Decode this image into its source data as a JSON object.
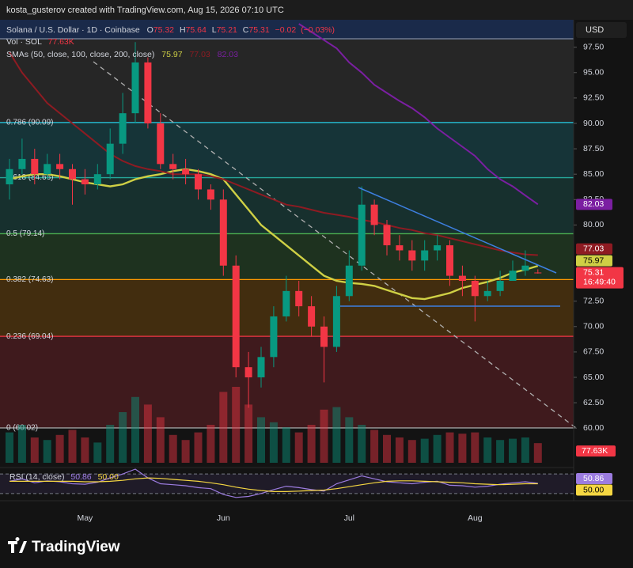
{
  "attribution": "kosta_gusterov created with TradingView.com, Aug 15, 2026 07:10 UTC",
  "currency": "USD",
  "logo": "TradingView",
  "chart_data": {
    "type": "candlestick",
    "symbol": "Solana / U.S. Dollar · 1D · Coinbase",
    "ohlc_labels": [
      "O",
      "H",
      "L",
      "C"
    ],
    "change": {
      "value": -0.02,
      "label": "−0.02"
    },
    "change_pct": {
      "value": -0.03,
      "label": "(−0.03%)"
    },
    "countdown": "16:49:40",
    "categories": [
      null,
      null,
      null,
      null,
      null,
      null,
      "May",
      null,
      null,
      null,
      null,
      null,
      null,
      null,
      null,
      null,
      null,
      "Jun",
      null,
      null,
      null,
      null,
      null,
      null,
      null,
      null,
      null,
      "Jul",
      null,
      null,
      null,
      null,
      null,
      null,
      null,
      null,
      null,
      "Aug",
      null,
      null,
      null,
      null,
      null
    ],
    "open": [
      84,
      85.5,
      86.5,
      85,
      86,
      85.5,
      84.5,
      84,
      85,
      88,
      91,
      96,
      90,
      86,
      85.5,
      85,
      83.5,
      82.5,
      76,
      66,
      65,
      67,
      71,
      73.5,
      72,
      70,
      68,
      73,
      76,
      82,
      80,
      78,
      77.5,
      76.5,
      77.5,
      78,
      75,
      74.5,
      73,
      73.5,
      74.5,
      75.5,
      75.32
    ],
    "high": [
      86.5,
      88.5,
      87.5,
      87,
      87,
      86,
      85.5,
      86,
      89.5,
      93,
      98,
      96.5,
      91,
      87,
      86.5,
      85.5,
      84,
      83.5,
      77,
      67.5,
      68,
      72,
      75,
      74.5,
      73,
      71,
      74,
      77.5,
      83.8,
      82.5,
      80.5,
      79,
      78.5,
      78.5,
      79,
      78.5,
      76,
      75,
      74.5,
      75.5,
      76.5,
      77.5,
      75.64
    ],
    "low": [
      82.5,
      85,
      84,
      84.5,
      84.5,
      82,
      83,
      83.5,
      84.5,
      87,
      90,
      89.5,
      85.5,
      84.5,
      84,
      82.5,
      81.5,
      75,
      65,
      62,
      64,
      66,
      70.5,
      71,
      69,
      64.5,
      67.5,
      72.5,
      75.5,
      79,
      77,
      76.5,
      75.5,
      75.5,
      76.5,
      74,
      73,
      70.5,
      72.5,
      73,
      74.5,
      75,
      75.21
    ],
    "close": [
      85.5,
      86.5,
      85,
      86,
      85.5,
      84.5,
      84,
      85,
      88,
      91,
      96,
      90,
      86,
      85.5,
      85,
      83.5,
      82.5,
      76,
      66,
      65,
      67,
      71,
      73.5,
      72,
      70,
      68,
      73,
      76,
      82,
      80,
      78,
      77.5,
      76.5,
      77.5,
      78,
      75,
      74.5,
      73,
      73.5,
      74.5,
      75.5,
      76,
      75.31
    ],
    "up_color": "#089981",
    "down_color": "#f23645",
    "ylim": [
      56.2,
      100.2
    ],
    "yticks": [
      {
        "value": 97.5,
        "label": "97.50"
      },
      {
        "value": 95,
        "label": "95.00"
      },
      {
        "value": 92.5,
        "label": "92.50"
      },
      {
        "value": 90,
        "label": "90.00"
      },
      {
        "value": 87.5,
        "label": "87.50"
      },
      {
        "value": 85,
        "label": "85.00"
      },
      {
        "value": 82.5,
        "label": "82.50"
      },
      {
        "value": 80,
        "label": "80.00"
      },
      {
        "value": 72.5,
        "label": "72.50"
      },
      {
        "value": 70,
        "label": "70.00"
      },
      {
        "value": 67.5,
        "label": "67.50"
      },
      {
        "value": 65,
        "label": "65.00"
      },
      {
        "value": 62.5,
        "label": "62.50"
      },
      {
        "value": 60,
        "label": "60.00"
      }
    ],
    "grid": false,
    "sma_title": "SMAs (50, close, 100, close, 200, close)",
    "sma": [
      {
        "color": "#cfd045",
        "values": [
          84.5,
          84.8,
          85,
          85,
          84.8,
          84.5,
          84.2,
          84,
          83.8,
          84,
          84.5,
          84.8,
          85,
          85.3,
          85.5,
          85.3,
          85,
          84.5,
          83,
          81.5,
          80,
          79,
          78,
          77,
          76,
          75,
          74.5,
          74.3,
          74.2,
          74,
          73.6,
          73.2,
          72.8,
          72.7,
          73,
          73.3,
          73.8,
          74.1,
          74.4,
          74.8,
          75.3,
          75.6,
          75.97
        ]
      },
      {
        "color": "#8e1b22",
        "values": [
          97,
          95,
          93.5,
          92,
          91,
          90,
          89,
          88,
          87,
          86.3,
          85.8,
          85.5,
          85.3,
          85,
          85,
          85,
          84.8,
          84.5,
          84,
          83.5,
          83,
          82.5,
          82,
          81.8,
          81.5,
          81.2,
          81,
          80.8,
          80.5,
          80.3,
          80,
          79.7,
          79.5,
          79.2,
          79,
          78.7,
          78.4,
          78.1,
          77.8,
          77.5,
          77.3,
          77.1,
          77.03
        ]
      },
      {
        "color": "#7b1fa2",
        "values": [
          null,
          null,
          null,
          null,
          null,
          null,
          null,
          null,
          null,
          null,
          null,
          null,
          null,
          null,
          null,
          null,
          null,
          null,
          null,
          null,
          null,
          null,
          null,
          99.8,
          99,
          98.2,
          97.4,
          96,
          95,
          93.8,
          93,
          92.2,
          91.5,
          90.6,
          89.5,
          88.6,
          87.7,
          86.8,
          85.5,
          84.5,
          83.8,
          82.9,
          82.03
        ]
      }
    ],
    "fib": [
      {
        "label": "0.786 (90.09)",
        "value": 90.09,
        "color": "#22b8cf"
      },
      {
        "label": "0.618 (84.66)",
        "value": 84.66,
        "color": "#26a69a"
      },
      {
        "label": "0.5 (79.14)",
        "value": 79.14,
        "color": "#4caf50"
      },
      {
        "label": "0.382 (74.63)",
        "value": 74.63,
        "color": "#ff9800"
      },
      {
        "label": "0.236 (69.04)",
        "value": 69.04,
        "color": "#f23645"
      },
      {
        "label": "0 (60.02)",
        "value": 60.02,
        "color": "#9e9e9e"
      }
    ],
    "volume": {
      "title": "Vol · SOL",
      "values": [
        120,
        150,
        100,
        90,
        110,
        130,
        100,
        80,
        150,
        200,
        260,
        230,
        180,
        110,
        90,
        120,
        150,
        280,
        300,
        230,
        180,
        160,
        140,
        120,
        150,
        210,
        220,
        180,
        150,
        130,
        110,
        100,
        90,
        95,
        110,
        120,
        115,
        120,
        100,
        90,
        95,
        100,
        77.63
      ],
      "value_labels": [
        null,
        null,
        null,
        null,
        null,
        null,
        null,
        null,
        null,
        null,
        null,
        null,
        null,
        null,
        null,
        null,
        null,
        null,
        null,
        null,
        null,
        null,
        null,
        null,
        null,
        null,
        null,
        null,
        null,
        null,
        null,
        null,
        null,
        null,
        null,
        null,
        null,
        null,
        null,
        null,
        null,
        null,
        "77.63K"
      ]
    },
    "rsi": {
      "title": "RSI (14, close)",
      "ylim": [
        20,
        80
      ],
      "bands": [
        70,
        30
      ],
      "series": [
        {
          "color": "#9c7ce0",
          "values": [
            55,
            60,
            52,
            56,
            54,
            50,
            49,
            53,
            62,
            70,
            80,
            62,
            50,
            48,
            46,
            42,
            40,
            28,
            22,
            24,
            30,
            38,
            45,
            42,
            38,
            35,
            50,
            58,
            66,
            60,
            54,
            52,
            50,
            53,
            55,
            47,
            46,
            43,
            45,
            49,
            52,
            54,
            50.86
          ]
        },
        {
          "color": "#f5d742",
          "values": [
            55,
            55,
            55,
            55,
            55,
            55,
            54,
            54,
            55,
            57,
            60,
            62,
            61,
            59,
            57,
            55,
            52,
            48,
            43,
            39,
            36,
            34,
            34,
            35,
            36,
            37,
            40,
            44,
            48,
            52,
            55,
            56,
            56,
            55,
            54,
            53,
            52,
            50,
            49,
            48,
            49,
            50,
            50
          ],
          "value_labels": [
            null,
            null,
            null,
            null,
            null,
            null,
            null,
            null,
            null,
            null,
            null,
            null,
            null,
            null,
            null,
            null,
            null,
            null,
            null,
            null,
            null,
            null,
            null,
            null,
            null,
            null,
            null,
            null,
            null,
            null,
            null,
            null,
            null,
            null,
            null,
            null,
            null,
            null,
            null,
            null,
            null,
            null,
            "50.00"
          ]
        }
      ]
    }
  }
}
